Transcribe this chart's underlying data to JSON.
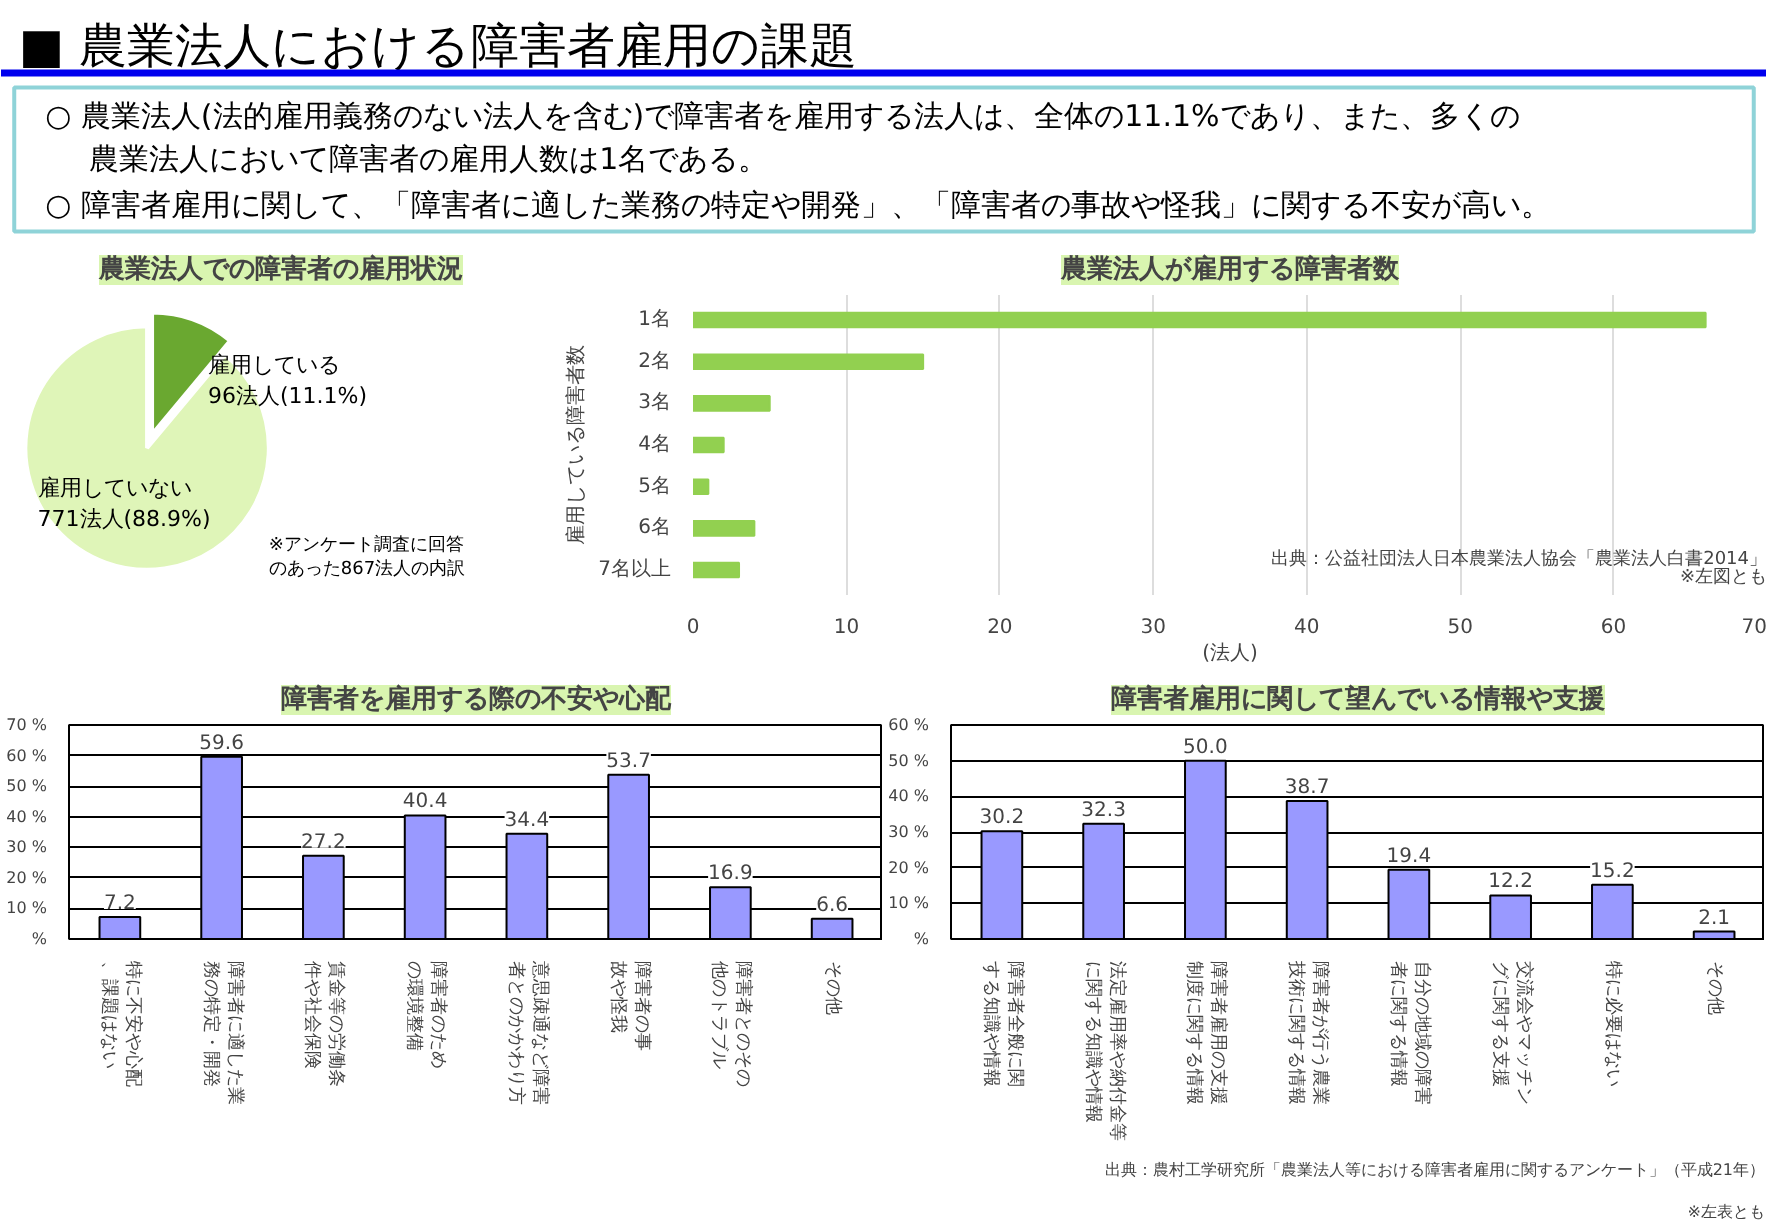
{
  "chart_data": [
    {
      "type": "other",
      "title": "■ 農業法人における障害者雇用の課題",
      "annotations": [
        "○ 農業法人(法的雇用義務のない法人を含む)で障害者を雇用する法人は、全体の11.1%であり、また、多くの",
        "農業法人において障害者の雇用人数は1名である。",
        "○ 障害者雇用に関して、「障害者に適した業務の特定や開発」、「障害者の事故や怪我」に関する不安が高い。"
      ]
    },
    {
      "type": "pie",
      "title": "農業法人での障害者の雇用状況",
      "categories": [
        "雇用している",
        "雇用していない"
      ],
      "values": [
        96,
        771
      ],
      "colors": [
        "#6aa830",
        "#dff5b8"
      ],
      "value_labels": [
        "96法人(11.1%)",
        "771法人(88.9%)"
      ],
      "annotations": [
        "※アンケート調査に回答のあった867法人の内訳"
      ]
    },
    {
      "type": "bar",
      "orientation": "horizontal",
      "title": "農業法人が雇用する障害者数",
      "ylabel": "雇用している障害者数",
      "xlabel": "(法人)",
      "categories": [
        "1名",
        "2名",
        "3名",
        "4名",
        "5名",
        "6名",
        "7名以上"
      ],
      "values": [
        66,
        15,
        5,
        2,
        1,
        4,
        3
      ],
      "color": "#92d050",
      "xlim": [
        0,
        70
      ],
      "xticks": [
        0,
        10,
        20,
        30,
        40,
        50,
        60,
        70
      ],
      "grid": "x",
      "annotations": [
        "出典：公益社団法人日本農業法人協会「農業法人白書2014」",
        "※左図とも"
      ]
    },
    {
      "type": "bar",
      "title": "障害者を雇用する際の不安や心配",
      "categories": [
        "特に不安や心配、課題はない",
        "障害者に適した業務の特定・開発",
        "賃金等の労働条件や社会保険",
        "障害者のための環境整備",
        "意思疎通など障害者とのかかわり方",
        "障害者の事故や怪我",
        "障害者とのその他のトラブル",
        "その他"
      ],
      "values": [
        7.2,
        59.6,
        27.2,
        40.4,
        34.4,
        53.7,
        16.9,
        6.6
      ],
      "value_labels": [
        "7.2",
        "59.6",
        "27.2",
        "40.4",
        "34.4",
        "53.7",
        "16.9",
        "6.6"
      ],
      "color": "#9999ff",
      "ylim": [
        0,
        70
      ],
      "yticks": [
        {
          "value": 0,
          "label": "%"
        },
        {
          "value": 10,
          "label": "10 %"
        },
        {
          "value": 20,
          "label": "20 %"
        },
        {
          "value": 30,
          "label": "30 %"
        },
        {
          "value": 40,
          "label": "40 %"
        },
        {
          "value": 50,
          "label": "50 %"
        },
        {
          "value": 60,
          "label": "60 %"
        },
        {
          "value": 70,
          "label": "70 %"
        }
      ],
      "grid": "y"
    },
    {
      "type": "bar",
      "title": "障害者雇用に関して望んでいる情報や支援",
      "categories": [
        "障害者全般に関する知識や情報",
        "法定雇用率や納付金等に関する知識や情報",
        "障害者雇用の支援制度に関する情報",
        "障害者が行う農業技術に関する情報",
        "自分の地域の障害者に関する情報",
        "交流会やマッチングに関する支援",
        "特に必要はない",
        "その他"
      ],
      "values": [
        30.2,
        32.3,
        50.0,
        38.7,
        19.4,
        12.2,
        15.2,
        2.1
      ],
      "value_labels": [
        "30.2",
        "32.3",
        "50.0",
        "38.7",
        "19.4",
        "12.2",
        "15.2",
        "2.1"
      ],
      "color": "#9999ff",
      "ylim": [
        0,
        60
      ],
      "yticks": [
        {
          "value": 0,
          "label": "%"
        },
        {
          "value": 10,
          "label": "10 %"
        },
        {
          "value": 20,
          "label": "20 %"
        },
        {
          "value": 30,
          "label": "30 %"
        },
        {
          "value": 40,
          "label": "40 %"
        },
        {
          "value": 50,
          "label": "50 %"
        },
        {
          "value": 60,
          "label": "60 %"
        }
      ],
      "grid": "y",
      "annotations": [
        "出典：農村工学研究所「農業法人等における障害者雇用に関するアンケート」（平成21年）",
        "※左表とも"
      ]
    }
  ]
}
